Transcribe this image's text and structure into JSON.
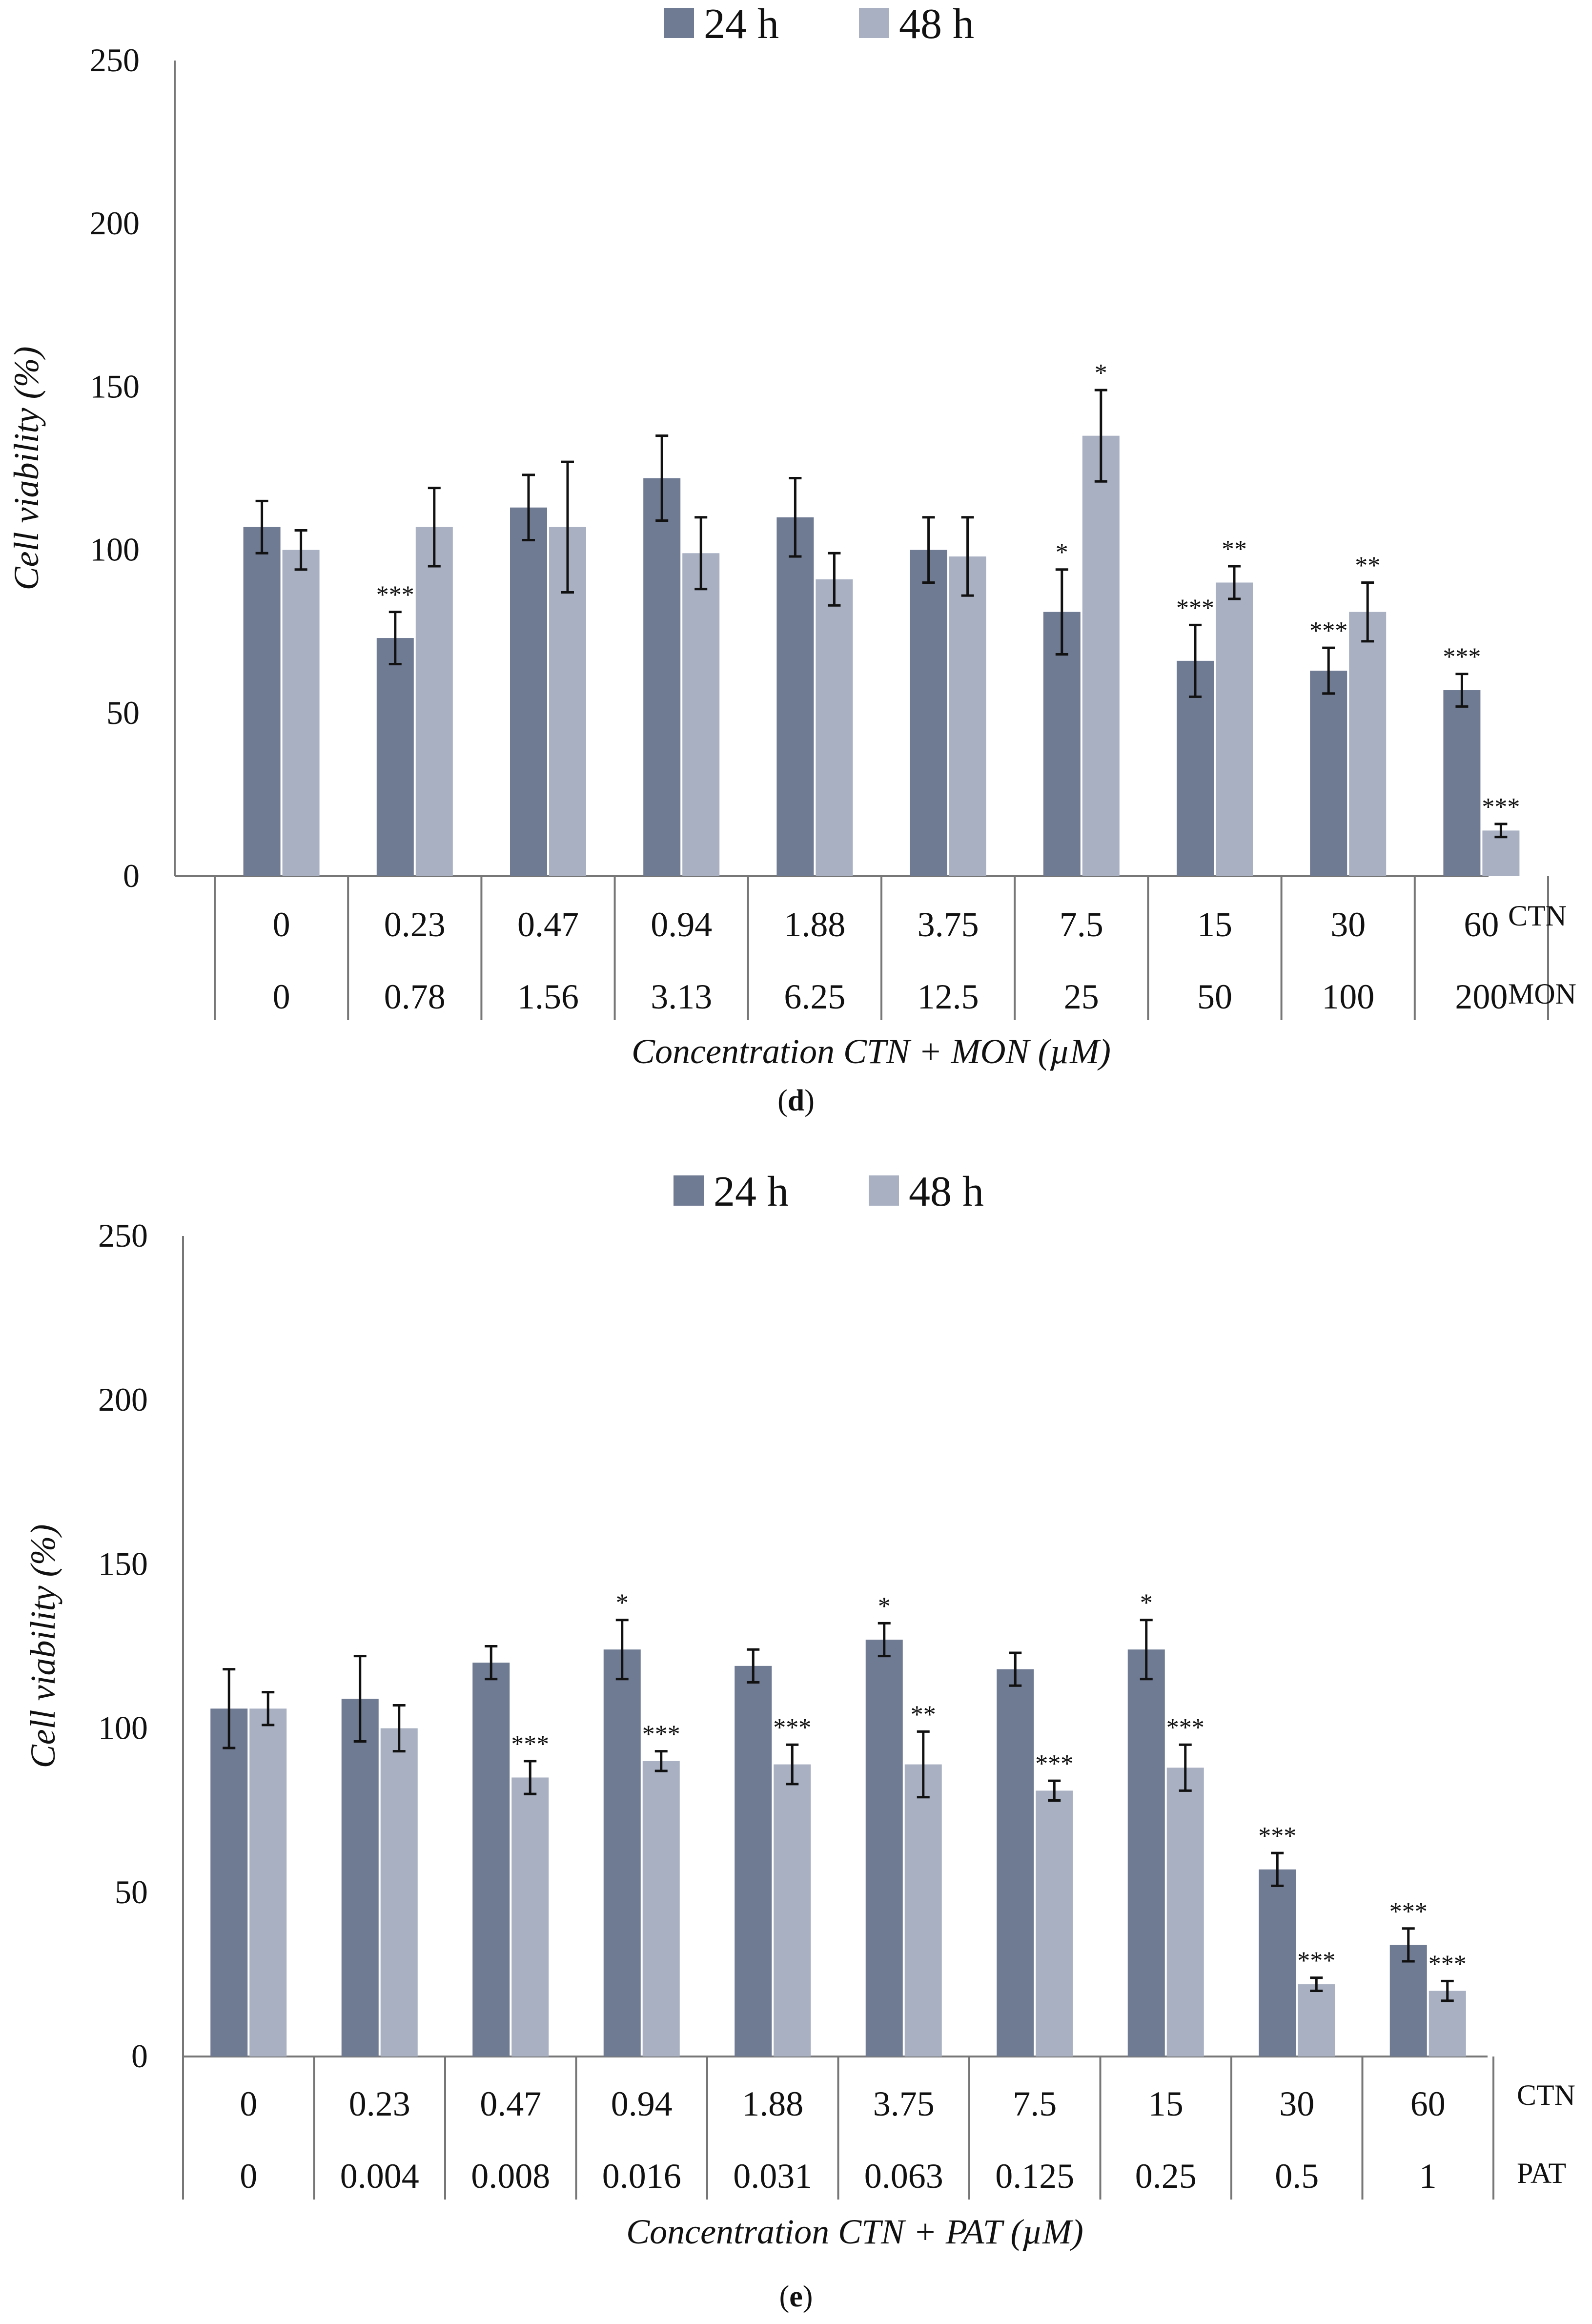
{
  "colors": {
    "h24": "#6f7a93",
    "h48": "#a8b0c2",
    "axis": "#777777",
    "text": "#111111"
  },
  "panels": [
    {
      "caption_open": "(",
      "caption_letter": "d",
      "caption_close": ")",
      "row_labels": [
        "CTN",
        "MON"
      ]
    },
    {
      "caption_open": "(",
      "caption_letter": "e",
      "caption_close": ")",
      "row_labels": [
        "CTN",
        "PAT"
      ]
    }
  ],
  "chart_data": [
    {
      "type": "bar",
      "ylabel": "Cell viability (%)",
      "xlabel": "Concentration CTN + MON (µM)",
      "ylim": [
        0,
        250
      ],
      "yticks": [
        0,
        50,
        100,
        150,
        200,
        250
      ],
      "legend_position": "top-center",
      "categories_row1": [
        "0",
        "0.23",
        "0.47",
        "0.94",
        "1.88",
        "3.75",
        "7.5",
        "15",
        "30",
        "60"
      ],
      "categories_row2": [
        "0",
        "0.78",
        "1.56",
        "3.13",
        "6.25",
        "12.5",
        "25",
        "50",
        "100",
        "200"
      ],
      "series": [
        {
          "name": "24 h",
          "values": [
            107,
            73,
            113,
            122,
            110,
            100,
            81,
            66,
            63,
            57
          ],
          "errors": [
            8,
            8,
            10,
            13,
            12,
            10,
            13,
            11,
            7,
            5
          ],
          "significance": [
            "",
            "***",
            "",
            "",
            "",
            "",
            "*",
            "***",
            "***",
            "***"
          ]
        },
        {
          "name": "48 h",
          "values": [
            100,
            107,
            107,
            99,
            91,
            98,
            135,
            90,
            81,
            14
          ],
          "errors": [
            6,
            12,
            20,
            11,
            8,
            12,
            14,
            5,
            9,
            2
          ],
          "significance": [
            "",
            "",
            "",
            "",
            "",
            "",
            "*",
            "**",
            "**",
            "***"
          ]
        }
      ]
    },
    {
      "type": "bar",
      "ylabel": "Cell viability (%)",
      "xlabel": "Concentration CTN + PAT (µM)",
      "ylim": [
        0,
        250
      ],
      "yticks": [
        0,
        50,
        100,
        150,
        200,
        250
      ],
      "legend_position": "top-center",
      "categories_row1": [
        "0",
        "0.23",
        "0.47",
        "0.94",
        "1.88",
        "3.75",
        "7.5",
        "15",
        "30",
        "60"
      ],
      "categories_row2": [
        "0",
        "0.004",
        "0.008",
        "0.016",
        "0.031",
        "0.063",
        "0.125",
        "0.25",
        "0.5",
        "1"
      ],
      "series": [
        {
          "name": "24 h",
          "values": [
            106,
            109,
            120,
            124,
            119,
            127,
            118,
            124,
            57,
            34
          ],
          "errors": [
            12,
            13,
            5,
            9,
            5,
            5,
            5,
            9,
            5,
            5
          ],
          "significance": [
            "",
            "",
            "",
            "*",
            "",
            "*",
            "",
            "*",
            "***",
            "***"
          ]
        },
        {
          "name": "48 h",
          "values": [
            106,
            100,
            85,
            90,
            89,
            89,
            81,
            88,
            22,
            20
          ],
          "errors": [
            5,
            7,
            5,
            3,
            6,
            10,
            3,
            7,
            2,
            3
          ],
          "significance": [
            "",
            "",
            "***",
            "***",
            "***",
            "**",
            "***",
            "***",
            "***",
            "***"
          ]
        }
      ]
    }
  ]
}
